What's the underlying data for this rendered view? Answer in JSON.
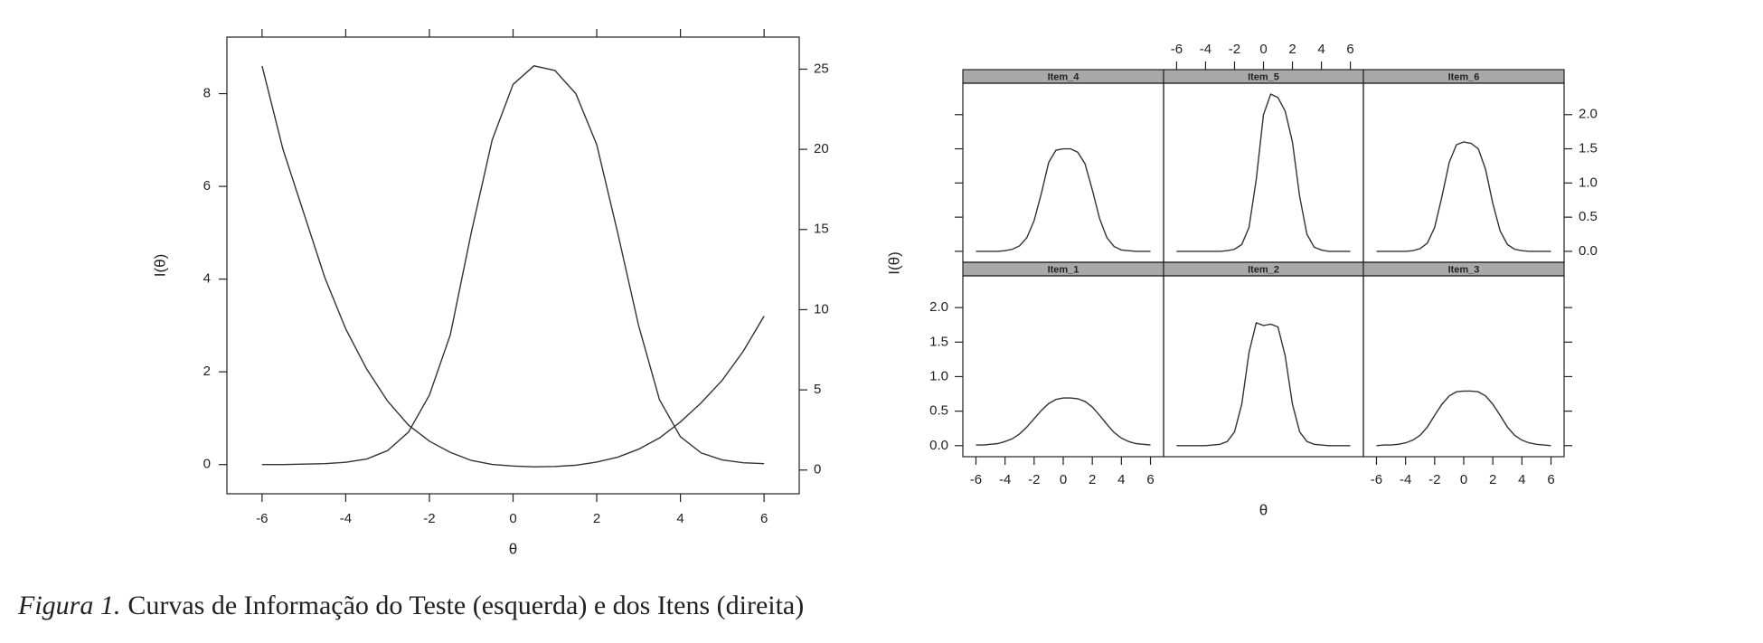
{
  "chart_data": [
    {
      "type": "line",
      "x_label": "θ",
      "y_label": "I(θ)",
      "x": [
        -6,
        -5.5,
        -5,
        -4.5,
        -4,
        -3.5,
        -3,
        -2.5,
        -2,
        -1.5,
        -1,
        -0.5,
        0,
        0.5,
        1,
        1.5,
        2,
        2.5,
        3,
        3.5,
        4,
        4.5,
        5,
        5.5,
        6
      ],
      "series": [
        {
          "color": "#333333",
          "values": [
            0,
            0,
            0.01,
            0.02,
            0.05,
            0.12,
            0.3,
            0.7,
            1.5,
            2.8,
            5.0,
            7.0,
            8.2,
            8.6,
            8.5,
            8.0,
            6.9,
            5.0,
            3.0,
            1.4,
            0.6,
            0.25,
            0.1,
            0.04,
            0.02
          ]
        },
        {
          "color": "#333333",
          "axis": "y2",
          "values": [
            25.2,
            20,
            16,
            12,
            8.8,
            6.3,
            4.3,
            2.8,
            1.8,
            1.1,
            0.6,
            0.35,
            0.25,
            0.2,
            0.22,
            0.3,
            0.5,
            0.8,
            1.3,
            2.0,
            3.0,
            4.2,
            5.6,
            7.4,
            9.6
          ]
        }
      ],
      "xlim": [
        -6.84,
        6.84
      ],
      "xticks": [
        -6,
        -4,
        -2,
        0,
        2,
        4,
        6
      ],
      "ylim": [
        -0.63,
        9.22
      ],
      "yticks": [
        0,
        2,
        4,
        6,
        8
      ],
      "y2lim": [
        -1.48,
        27.0
      ],
      "y2ticks": [
        0,
        5,
        10,
        15,
        20,
        25
      ]
    },
    {
      "type": "lattice",
      "x_label": "θ",
      "y_label": "I(θ)",
      "x": [
        -6,
        -5.5,
        -5,
        -4.5,
        -4,
        -3.5,
        -3,
        -2.5,
        -2,
        -1.5,
        -1,
        -0.5,
        0,
        0.5,
        1,
        1.5,
        2,
        2.5,
        3,
        3.5,
        4,
        4.5,
        5,
        5.5,
        6
      ],
      "series": [
        {
          "name": "Item_1",
          "color": "#333333",
          "values": [
            0.01,
            0.01,
            0.02,
            0.03,
            0.06,
            0.1,
            0.17,
            0.27,
            0.39,
            0.51,
            0.61,
            0.67,
            0.69,
            0.69,
            0.68,
            0.64,
            0.56,
            0.44,
            0.31,
            0.19,
            0.11,
            0.06,
            0.03,
            0.02,
            0.01
          ]
        },
        {
          "name": "Item_2",
          "color": "#333333",
          "values": [
            0,
            0,
            0,
            0,
            0,
            0.01,
            0.02,
            0.06,
            0.2,
            0.6,
            1.35,
            1.78,
            1.74,
            1.76,
            1.72,
            1.3,
            0.6,
            0.2,
            0.06,
            0.02,
            0.01,
            0,
            0,
            0,
            0
          ]
        },
        {
          "name": "Item_3",
          "color": "#333333",
          "values": [
            0,
            0.01,
            0.01,
            0.02,
            0.04,
            0.08,
            0.15,
            0.27,
            0.44,
            0.6,
            0.72,
            0.78,
            0.79,
            0.79,
            0.78,
            0.72,
            0.6,
            0.44,
            0.27,
            0.15,
            0.08,
            0.04,
            0.02,
            0.01,
            0
          ]
        },
        {
          "name": "Item_4",
          "color": "#333333",
          "values": [
            0,
            0,
            0,
            0,
            0.01,
            0.03,
            0.08,
            0.2,
            0.45,
            0.85,
            1.3,
            1.48,
            1.5,
            1.5,
            1.45,
            1.28,
            0.9,
            0.48,
            0.2,
            0.07,
            0.02,
            0.01,
            0,
            0,
            0
          ]
        },
        {
          "name": "Item_5",
          "color": "#333333",
          "values": [
            0,
            0,
            0,
            0,
            0,
            0,
            0,
            0.01,
            0.03,
            0.1,
            0.35,
            1.05,
            2.0,
            2.3,
            2.25,
            2.05,
            1.6,
            0.8,
            0.25,
            0.06,
            0.02,
            0,
            0,
            0,
            0
          ]
        },
        {
          "name": "Item_6",
          "color": "#333333",
          "values": [
            0,
            0,
            0,
            0,
            0,
            0.01,
            0.04,
            0.12,
            0.35,
            0.8,
            1.3,
            1.56,
            1.6,
            1.58,
            1.5,
            1.2,
            0.7,
            0.3,
            0.1,
            0.03,
            0.01,
            0,
            0,
            0,
            0
          ]
        }
      ],
      "xlim": [
        -6.9,
        6.9
      ],
      "xticks": [
        -6,
        -4,
        -2,
        0,
        2,
        4,
        6
      ],
      "ylim": [
        -0.16,
        2.46
      ],
      "yticks": [
        {
          "value": 0,
          "label": "0.0"
        },
        0.5,
        {
          "value": 1,
          "label": "1.0"
        },
        1.5,
        {
          "value": 2,
          "label": "2.0"
        }
      ],
      "strip_color": "#a9a9a9"
    }
  ],
  "caption": {
    "label": "Figura 1.",
    "text": "Curvas de Informação do Teste (esquerda) e dos Itens (direita)"
  }
}
